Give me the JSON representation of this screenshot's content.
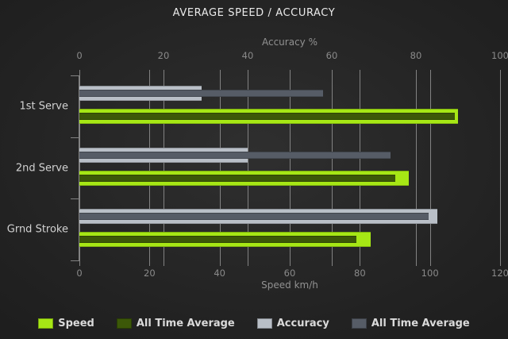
{
  "title": "AVERAGE SPEED / ACCURACY",
  "colors": {
    "speed": "#a6e715",
    "speed_all_time": "#3c5808",
    "accuracy": "#b9bfc7",
    "accuracy_all_time": "#565c66",
    "grid": "#828282",
    "axis": "#8a8a8a"
  },
  "chart_data": {
    "type": "bar",
    "orientation": "horizontal",
    "title": "AVERAGE SPEED / ACCURACY",
    "categories": [
      "1st Serve",
      "2nd Serve",
      "Grnd Stroke"
    ],
    "top_axis": {
      "label": "Accuracy %",
      "ticks": [
        0,
        20,
        40,
        60,
        80,
        100
      ],
      "range": [
        0,
        100
      ]
    },
    "bottom_axis": {
      "label": "Speed km/h",
      "ticks": [
        0,
        20,
        40,
        60,
        80,
        100,
        120
      ],
      "range": [
        0,
        120
      ]
    },
    "series": [
      {
        "name": "Speed",
        "axis": "bottom",
        "color_key": "speed",
        "values": [
          108,
          94,
          83
        ]
      },
      {
        "name": "All Time Average",
        "axis": "bottom",
        "color_key": "speed_all_time",
        "values": [
          107,
          90,
          79
        ]
      },
      {
        "name": "Accuracy",
        "axis": "top",
        "color_key": "accuracy",
        "values": [
          29,
          40,
          85
        ]
      },
      {
        "name": "All Time Average",
        "axis": "top",
        "color_key": "accuracy_all_time",
        "values": [
          58,
          74,
          83
        ]
      }
    ],
    "grid": true,
    "legend_position": "bottom",
    "legend": [
      "Speed",
      "All Time Average",
      "Accuracy",
      "All Time Average"
    ]
  }
}
